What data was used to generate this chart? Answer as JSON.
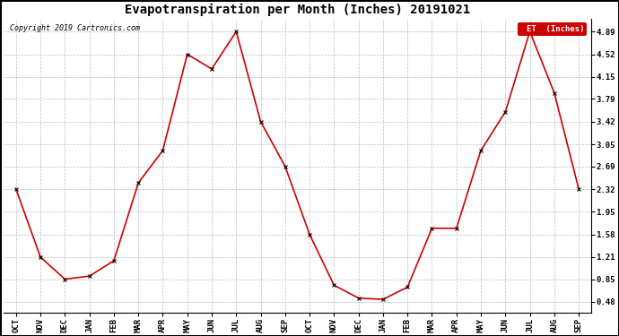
{
  "title": "Evapotranspiration per Month (Inches) 20191021",
  "copyright": "Copyright 2019 Cartronics.com",
  "legend_label": "ET  (Inches)",
  "months": [
    "OCT",
    "NOV",
    "DEC",
    "JAN",
    "FEB",
    "MAR",
    "APR",
    "MAY",
    "JUN",
    "JUL",
    "AUG",
    "SEP",
    "OCT",
    "NOV",
    "DEC",
    "JAN",
    "FEB",
    "MAR",
    "APR",
    "MAY",
    "JUN",
    "JUL",
    "AUG",
    "SEP"
  ],
  "values": [
    2.32,
    1.21,
    0.85,
    0.9,
    1.15,
    2.42,
    2.95,
    4.52,
    4.28,
    4.89,
    3.42,
    2.69,
    1.58,
    0.75,
    0.54,
    0.52,
    0.72,
    1.68,
    1.68,
    2.95,
    3.58,
    4.89,
    3.89,
    2.32
  ],
  "line_color": "#cc0000",
  "marker_color": "#000000",
  "grid_color": "#bbbbbb",
  "background_color": "#ffffff",
  "yticks": [
    0.48,
    0.85,
    1.21,
    1.58,
    1.95,
    2.32,
    2.69,
    3.05,
    3.42,
    3.79,
    4.15,
    4.52,
    4.89
  ],
  "ylim": [
    0.3,
    5.1
  ],
  "title_fontsize": 10,
  "tick_fontsize": 6.5,
  "copyright_fontsize": 6,
  "legend_bg_color": "#cc0000",
  "legend_text_color": "#ffffff",
  "legend_fontsize": 6.5,
  "border_color": "#000000",
  "figsize": [
    6.9,
    3.75
  ],
  "dpi": 100
}
